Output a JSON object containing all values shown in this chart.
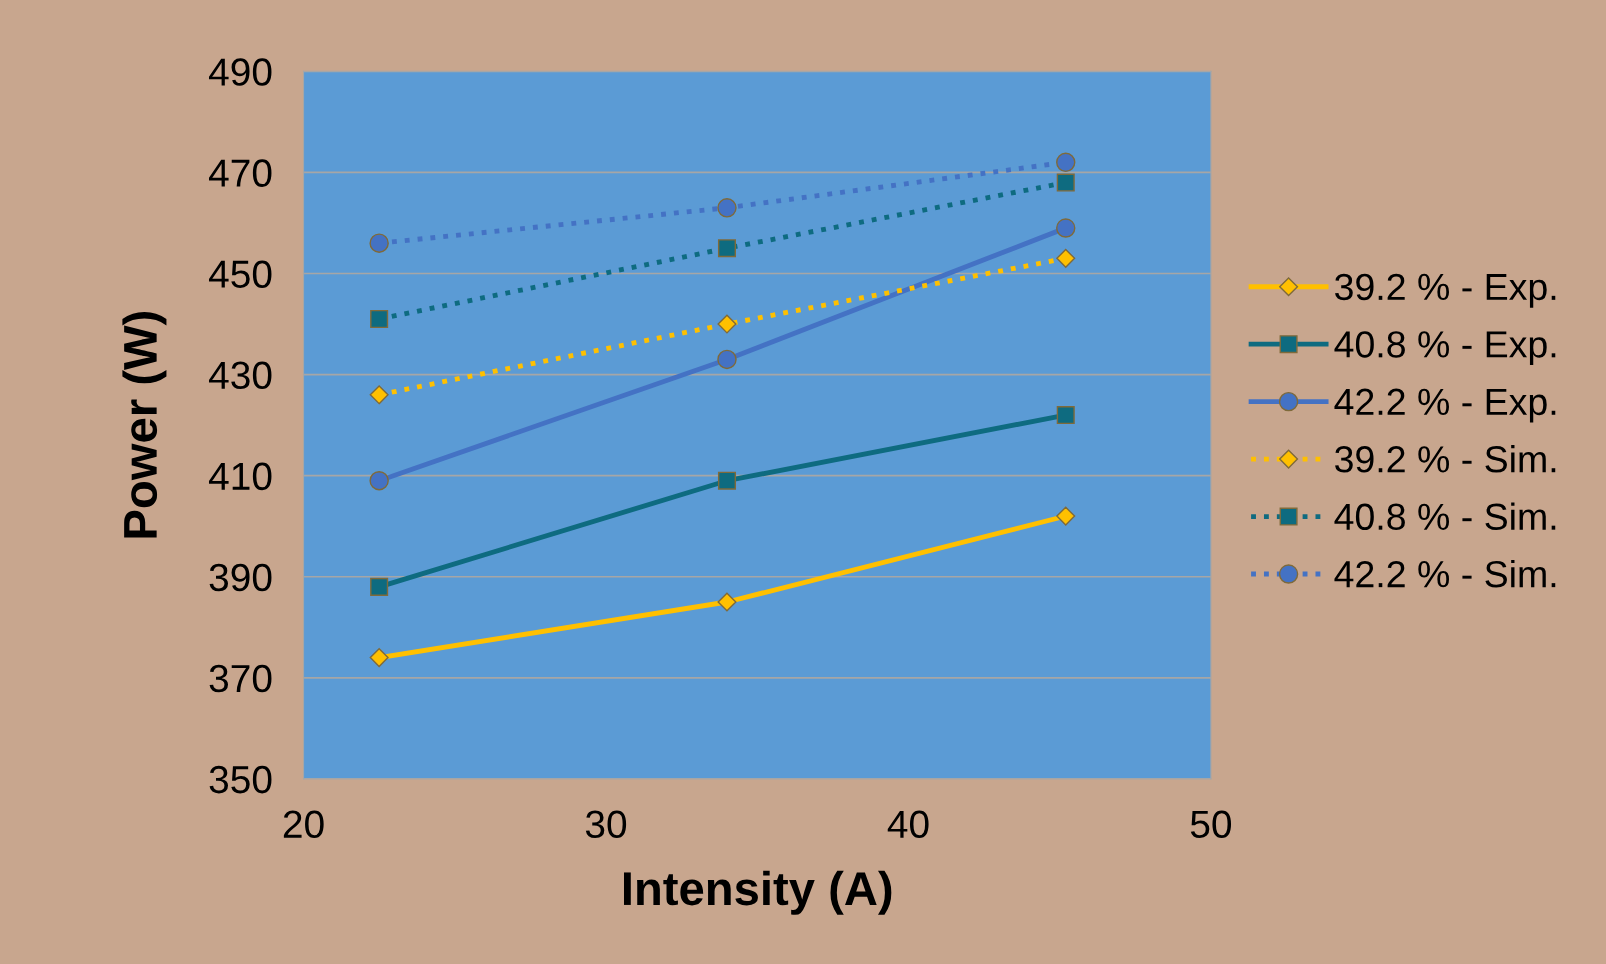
{
  "chart_data": {
    "type": "line",
    "xlabel": "Intensity (A)",
    "ylabel": "Power (W)",
    "x": [
      22.5,
      34,
      45.2
    ],
    "series": [
      {
        "name": "39.2 % - Exp.",
        "color": "#ffc000",
        "marker": "diamond",
        "line_style": "solid",
        "values": [
          374,
          385,
          402
        ]
      },
      {
        "name": "40.8 % - Exp.",
        "color": "#0e6b80",
        "marker": "square",
        "line_style": "solid",
        "values": [
          388,
          409,
          422
        ]
      },
      {
        "name": "42.2 % - Exp.",
        "color": "#4472c4",
        "marker": "circle",
        "line_style": "solid",
        "values": [
          409,
          433,
          459
        ]
      },
      {
        "name": "39.2 % - Sim.",
        "color": "#ffc000",
        "marker": "diamond",
        "line_style": "dotted",
        "values": [
          426,
          440,
          453
        ]
      },
      {
        "name": "40.8 % - Sim.",
        "color": "#0e6b80",
        "marker": "square",
        "line_style": "dotted",
        "values": [
          441,
          455,
          468
        ]
      },
      {
        "name": "42.2 % - Sim.",
        "color": "#4472c4",
        "marker": "circle",
        "line_style": "dotted",
        "values": [
          456,
          463,
          472
        ]
      }
    ],
    "xlim": [
      20,
      50
    ],
    "xticks": [
      20,
      30,
      40,
      50
    ],
    "ylim": [
      350,
      490
    ],
    "yticks": [
      350,
      370,
      390,
      410,
      430,
      450,
      470,
      490
    ],
    "grid": "y",
    "legend": "right"
  }
}
